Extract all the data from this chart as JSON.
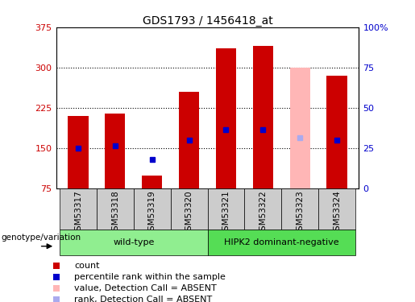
{
  "title": "GDS1793 / 1456418_at",
  "samples": [
    "GSM53317",
    "GSM53318",
    "GSM53319",
    "GSM53320",
    "GSM53321",
    "GSM53322",
    "GSM53323",
    "GSM53324"
  ],
  "bar_values": [
    210,
    215,
    100,
    255,
    335,
    340,
    300,
    285
  ],
  "rank_values": [
    150,
    155,
    130,
    165,
    185,
    185,
    170,
    165
  ],
  "absent": [
    false,
    false,
    false,
    false,
    false,
    false,
    true,
    false
  ],
  "y_min": 75,
  "y_max": 375,
  "y_ticks_left": [
    75,
    150,
    225,
    300,
    375
  ],
  "y_ticks_right_labels": [
    "0",
    "25",
    "50",
    "75",
    "100%"
  ],
  "y_ticks_right_vals": [
    75,
    150,
    225,
    300,
    375
  ],
  "groups": [
    {
      "label": "wild-type",
      "start": 0,
      "end": 4
    },
    {
      "label": "HIPK2 dominant-negative",
      "start": 4,
      "end": 8
    }
  ],
  "group_colors": [
    "#90ee90",
    "#55dd55"
  ],
  "bar_color": "#cc0000",
  "absent_bar_color": "#ffb6b6",
  "rank_color": "#0000cc",
  "absent_rank_color": "#aaaaee",
  "bar_width": 0.55,
  "plot_bg_color": "#ffffff",
  "legend_items": [
    {
      "label": "count",
      "color": "#cc0000"
    },
    {
      "label": "percentile rank within the sample",
      "color": "#0000cc"
    },
    {
      "label": "value, Detection Call = ABSENT",
      "color": "#ffb6b6"
    },
    {
      "label": "rank, Detection Call = ABSENT",
      "color": "#aaaaee"
    }
  ],
  "genotype_label": "genotype/variation",
  "sample_bg": "#cccccc"
}
